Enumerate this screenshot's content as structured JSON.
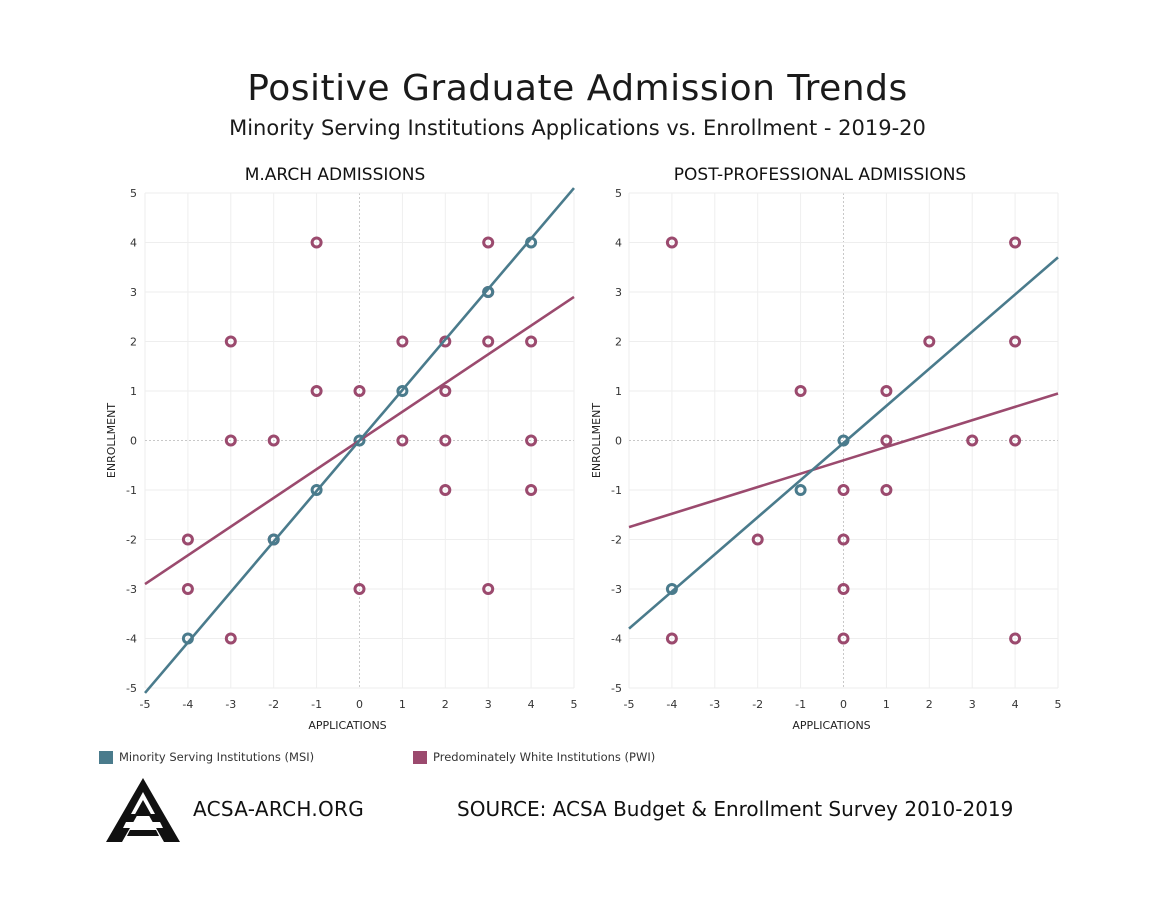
{
  "header": {
    "title": "Positive Graduate Admission Trends",
    "subtitle": "Minority Serving Institutions Applications vs. Enrollment - 2019-20"
  },
  "colors": {
    "msi": "#4a7b8c",
    "pwi": "#9b4a6e"
  },
  "legend": [
    {
      "label": "Minority Serving Institutions (MSI)",
      "color": "#4a7b8c"
    },
    {
      "label": "Predominately White Institutions (PWI)",
      "color": "#9b4a6e"
    }
  ],
  "footer": {
    "site": "ACSA-ARCH.ORG",
    "source": "SOURCE: ACSA Budget & Enrollment Survey 2010-2019"
  },
  "chart_data": [
    {
      "type": "scatter",
      "title": "M.ARCH ADMISSIONS",
      "xlabel": "APPLICATIONS",
      "ylabel": "ENROLLMENT",
      "xlim": [
        -5,
        5
      ],
      "ylim": [
        -5,
        5
      ],
      "xticks": [
        "-5",
        "-4",
        "-3",
        "-2",
        "-1",
        "0",
        "1",
        "2",
        "3",
        "4",
        "5"
      ],
      "yticks": [
        "5",
        "4",
        "3",
        "2",
        "1",
        "0",
        "-1",
        "-2",
        "-3",
        "-4",
        "-5"
      ],
      "grid": true,
      "series": [
        {
          "key": "pwi",
          "points": [
            [
              -1,
              4
            ],
            [
              3,
              4
            ],
            [
              3,
              3
            ],
            [
              -3,
              2
            ],
            [
              1,
              2
            ],
            [
              2,
              2
            ],
            [
              3,
              2
            ],
            [
              4,
              2
            ],
            [
              -1,
              1
            ],
            [
              0,
              1
            ],
            [
              2,
              1
            ],
            [
              -3,
              0
            ],
            [
              -2,
              0
            ],
            [
              1,
              0
            ],
            [
              2,
              0
            ],
            [
              4,
              0
            ],
            [
              2,
              -1
            ],
            [
              4,
              -1
            ],
            [
              -4,
              -2
            ],
            [
              -2,
              -2
            ],
            [
              -4,
              -3
            ],
            [
              0,
              -3
            ],
            [
              3,
              -3
            ],
            [
              -3,
              -4
            ]
          ],
          "trend": [
            [
              -5,
              -2.9
            ],
            [
              5,
              2.9
            ]
          ]
        },
        {
          "key": "msi",
          "points": [
            [
              4,
              4
            ],
            [
              3,
              3
            ],
            [
              1,
              1
            ],
            [
              0,
              0
            ],
            [
              -1,
              -1
            ],
            [
              -2,
              -2
            ],
            [
              -4,
              -4
            ]
          ],
          "trend": [
            [
              -5,
              -5.1
            ],
            [
              5,
              5.1
            ]
          ]
        }
      ]
    },
    {
      "type": "scatter",
      "title": "POST-PROFESSIONAL ADMISSIONS",
      "xlabel": "APPLICATIONS",
      "ylabel": "ENROLLMENT",
      "xlim": [
        -5,
        5
      ],
      "ylim": [
        -5,
        5
      ],
      "xticks": [
        "-5",
        "-4",
        "-3",
        "-2",
        "-1",
        "0",
        "1",
        "2",
        "3",
        "4",
        "5"
      ],
      "yticks": [
        "5",
        "4",
        "3",
        "2",
        "1",
        "0",
        "-1",
        "-2",
        "-3",
        "-4",
        "-5"
      ],
      "grid": true,
      "series": [
        {
          "key": "pwi",
          "points": [
            [
              -4,
              4
            ],
            [
              4,
              4
            ],
            [
              2,
              2
            ],
            [
              4,
              2
            ],
            [
              -1,
              1
            ],
            [
              1,
              1
            ],
            [
              1,
              0
            ],
            [
              3,
              0
            ],
            [
              4,
              0
            ],
            [
              0,
              -1
            ],
            [
              1,
              -1
            ],
            [
              -2,
              -2
            ],
            [
              0,
              -2
            ],
            [
              0,
              -3
            ],
            [
              -4,
              -4
            ],
            [
              0,
              -4
            ],
            [
              4,
              -4
            ]
          ],
          "trend": [
            [
              -5,
              -1.75
            ],
            [
              5,
              0.95
            ]
          ]
        },
        {
          "key": "msi",
          "points": [
            [
              0,
              0
            ],
            [
              -1,
              -1
            ],
            [
              -4,
              -3
            ]
          ],
          "trend": [
            [
              -5,
              -3.8
            ],
            [
              5,
              3.7
            ]
          ]
        }
      ]
    }
  ]
}
